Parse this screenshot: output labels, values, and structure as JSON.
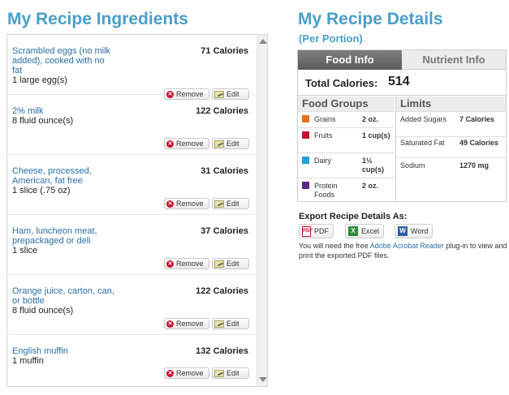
{
  "ingredients": {
    "title": "My Recipe Ingredients",
    "remove_label": "Remove",
    "edit_label": "Edit",
    "items": [
      {
        "name": "Scrambled eggs (no milk added), cooked with no fat",
        "qty": "1 large egg(s)",
        "calories": "71 Calories"
      },
      {
        "name": "2% milk",
        "qty": "8 fluid ounce(s)",
        "calories": "122 Calories"
      },
      {
        "name": "Cheese, processed, American, fat free",
        "qty": "1 slice (.75 oz)",
        "calories": "31 Calories"
      },
      {
        "name": "Ham, luncheon meat, prepackaged or deli",
        "qty": "1 slice",
        "calories": "37 Calories"
      },
      {
        "name": "Orange juice, carton, can, or bottle",
        "qty": "8 fluid ounce(s)",
        "calories": "122 Calories"
      },
      {
        "name": "English muffin",
        "qty": "1 muffin",
        "calories": "132 Calories"
      }
    ]
  },
  "details": {
    "title": "My Recipe Details",
    "subtitle": "(Per Portion)",
    "tabs": [
      {
        "label": "Food Info",
        "active": true
      },
      {
        "label": "Nutrient Info",
        "active": false
      }
    ],
    "total_label": "Total Calories:",
    "total_value": "514",
    "food_groups_header": "Food Groups",
    "limits_header": "Limits",
    "food_groups": [
      {
        "name": "Grains",
        "amount": "2 oz.",
        "color": "#e8731a"
      },
      {
        "name": "Fruits",
        "amount": "1 cup(s)",
        "color": "#c8102e"
      },
      {
        "name": "Dairy",
        "amount": "1½ cup(s)",
        "color": "#1ea3dc"
      },
      {
        "name": "Protein Foods",
        "amount": "2 oz.",
        "color": "#5b2a86"
      }
    ],
    "limits": [
      {
        "name": "Added Sugars",
        "value": "7 Calories"
      },
      {
        "name": "Saturated Fat",
        "value": "49 Calories"
      },
      {
        "name": "Sodium",
        "value": "1270 mg"
      }
    ]
  },
  "export": {
    "title": "Export Recipe Details As:",
    "pdf_label": "PDF",
    "excel_label": "Excel",
    "word_label": "Word",
    "note_before": "You will need the free ",
    "note_link": "Adobe Acrobat Reader",
    "note_after": " plug-in to view and print the exported PDF files."
  }
}
